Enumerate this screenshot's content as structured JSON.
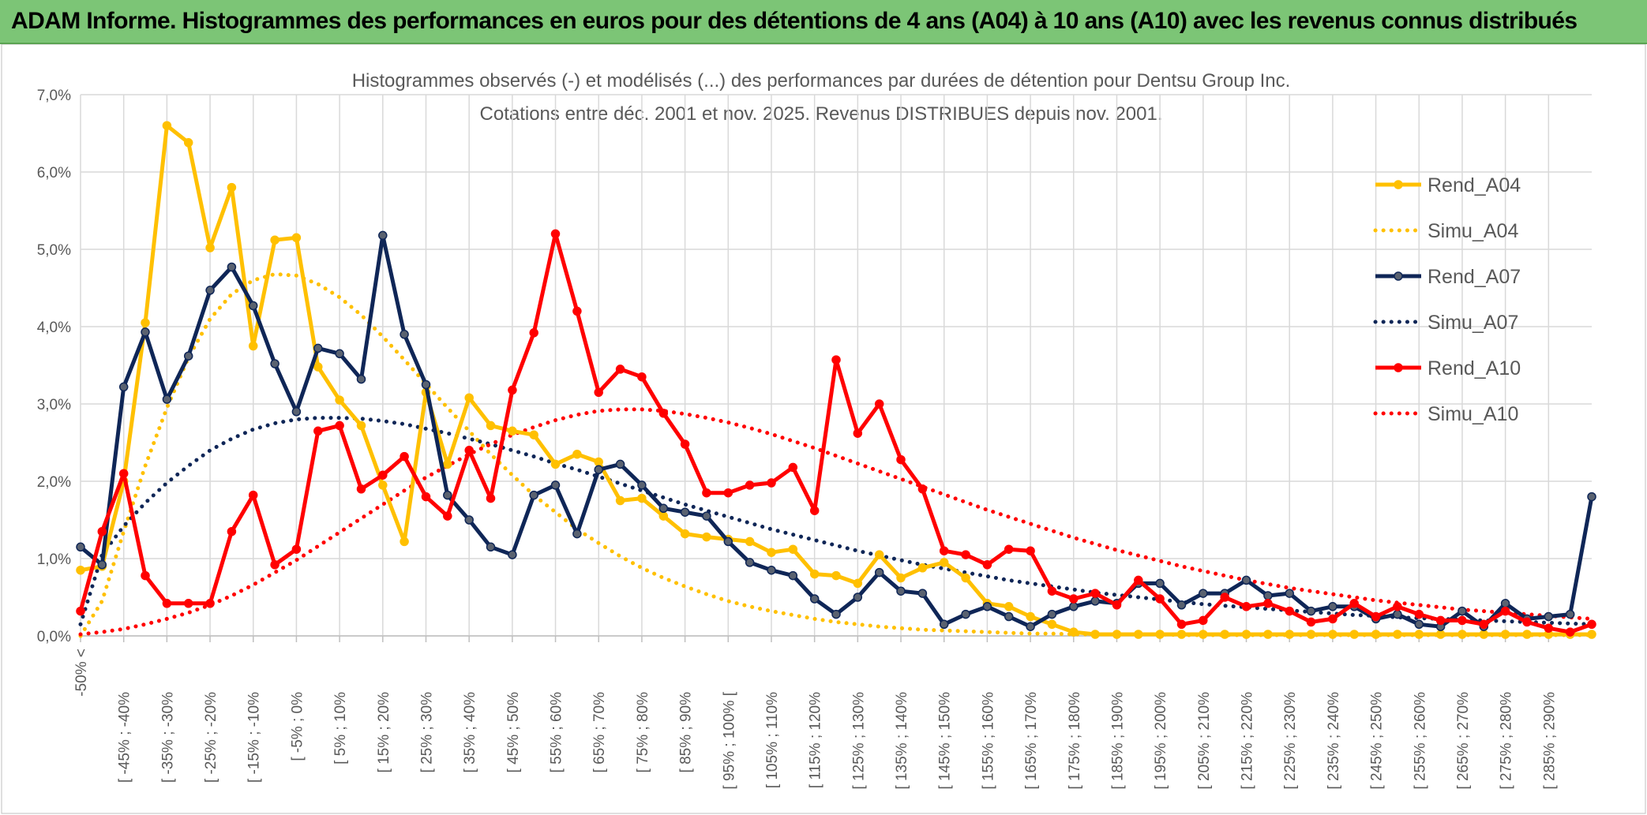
{
  "banner": {
    "title": "ADAM Informe. Histogrammes des performances en euros pour des détentions de 4 ans (A04) à 10 ans (A10) avec les revenus connus distribués"
  },
  "colors": {
    "banner": "#7cc576",
    "A04": "#ffc000",
    "A07": "#0f2657",
    "A10": "#ff0000",
    "grid": "#d9d9d9",
    "text": "#595959"
  },
  "chart_data": {
    "type": "line",
    "title": "Histogrammes observés (-) et modélisés (...) des performances par durées de détention pour Dentsu Group Inc.",
    "subtitle": "Cotations entre déc. 2001 et nov. 2025. Revenus DISTRIBUES depuis nov. 2001.",
    "xlabel": "",
    "ylabel": "",
    "ylim": [
      0,
      7
    ],
    "yticks": [
      "0,0%",
      "1,0%",
      "2,0%",
      "3,0%",
      "4,0%",
      "5,0%",
      "6,0%",
      "7,0%"
    ],
    "grid": true,
    "legend_position": "right",
    "x_labels": [
      "-50% <",
      "[ -45% ; -40%",
      "[ -35% ; -30%",
      "[ -25% ; -20%",
      "[ -15% ; -10%",
      "[ -5% ; 0%",
      "[ 5% ; 10%",
      "[ 15% ; 20%",
      "[ 25% ; 30%",
      "[ 35% ; 40%",
      "[ 45% ; 50%",
      "[ 55% ; 60%",
      "[ 65% ; 70%",
      "[ 75% ; 80%",
      "[ 85% ; 90%",
      "[ 95% ; 100% [",
      "[ 105% ; 110%",
      "[ 115% ; 120%",
      "[ 125% ; 130%",
      "[ 135% ; 140%",
      "[ 145% ; 150%",
      "[ 155% ; 160%",
      "[ 165% ; 170%",
      "[ 175% ; 180%",
      "[ 185% ; 190%",
      "[ 195% ; 200%",
      "[ 205% ; 210%",
      "[ 215% ; 220%",
      "[ 225% ; 230%",
      "[ 235% ; 240%",
      "[ 245% ; 250%",
      "[ 255% ; 260%",
      "[ 265% ; 270%",
      "[ 275% ; 280%",
      "[ 285% ; 290%"
    ],
    "series": [
      {
        "name": "Rend_A04",
        "style": "solid",
        "values": [
          0.85,
          0.9,
          2.0,
          4.05,
          6.6,
          6.38,
          5.02,
          5.8,
          3.75,
          5.12,
          5.15,
          3.48,
          3.05,
          2.72,
          1.95,
          1.22,
          3.15,
          2.22,
          3.08,
          2.72,
          2.65,
          2.6,
          2.22,
          2.35,
          2.25,
          1.75,
          1.78,
          1.55,
          1.32,
          1.28,
          1.25,
          1.22,
          1.08,
          1.12,
          0.8,
          0.78,
          0.68,
          1.05,
          0.75,
          0.88,
          0.95,
          0.75,
          0.42,
          0.38,
          0.25,
          0.15,
          0.05,
          0.02,
          0.02,
          0.02,
          0.02,
          0.02,
          0.02,
          0.02,
          0.02,
          0.02,
          0.02,
          0.02,
          0.02,
          0.02,
          0.02,
          0.02,
          0.02,
          0.02,
          0.02,
          0.02,
          0.02,
          0.02,
          0.02,
          0.02,
          0.02
        ]
      },
      {
        "name": "Simu_A04",
        "style": "dotted",
        "values": [
          0.0,
          0.45,
          1.35,
          2.2,
          2.95,
          3.6,
          4.1,
          4.42,
          4.6,
          4.68,
          4.66,
          4.55,
          4.38,
          4.15,
          3.87,
          3.57,
          3.26,
          2.95,
          2.65,
          2.35,
          2.08,
          1.82,
          1.6,
          1.38,
          1.2,
          1.03,
          0.88,
          0.75,
          0.64,
          0.54,
          0.45,
          0.38,
          0.32,
          0.27,
          0.22,
          0.18,
          0.15,
          0.12,
          0.1,
          0.08,
          0.07,
          0.06,
          0.05,
          0.04,
          0.03,
          0.03,
          0.02,
          0.02,
          0.02,
          0.02,
          0.02,
          0.01,
          0.01,
          0.01,
          0.01,
          0.01,
          0.01,
          0.01,
          0.01,
          0.01,
          0.01,
          0.01,
          0.01,
          0.01,
          0.01,
          0.01,
          0.01,
          0.01,
          0.01,
          0.01,
          0.01
        ]
      },
      {
        "name": "Rend_A07",
        "style": "solid",
        "values": [
          1.15,
          0.92,
          3.22,
          3.93,
          3.06,
          3.62,
          4.47,
          4.77,
          4.27,
          3.52,
          2.9,
          3.72,
          3.65,
          3.32,
          5.18,
          3.9,
          3.25,
          1.82,
          1.5,
          1.15,
          1.05,
          1.82,
          1.95,
          1.32,
          2.15,
          2.22,
          1.95,
          1.65,
          1.6,
          1.55,
          1.22,
          0.95,
          0.85,
          0.78,
          0.48,
          0.28,
          0.5,
          0.82,
          0.58,
          0.55,
          0.15,
          0.28,
          0.38,
          0.25,
          0.12,
          0.28,
          0.38,
          0.45,
          0.42,
          0.68,
          0.68,
          0.4,
          0.55,
          0.55,
          0.72,
          0.52,
          0.55,
          0.32,
          0.38,
          0.38,
          0.22,
          0.28,
          0.15,
          0.12,
          0.32,
          0.12,
          0.42,
          0.22,
          0.25,
          0.28,
          1.8
        ]
      },
      {
        "name": "Simu_A07",
        "style": "dotted",
        "values": [
          0.15,
          1.05,
          1.42,
          1.72,
          1.98,
          2.2,
          2.4,
          2.55,
          2.67,
          2.75,
          2.8,
          2.82,
          2.82,
          2.81,
          2.78,
          2.74,
          2.68,
          2.62,
          2.55,
          2.48,
          2.4,
          2.32,
          2.23,
          2.15,
          2.06,
          1.97,
          1.88,
          1.79,
          1.7,
          1.62,
          1.54,
          1.46,
          1.38,
          1.31,
          1.24,
          1.17,
          1.1,
          1.04,
          0.98,
          0.92,
          0.87,
          0.82,
          0.77,
          0.72,
          0.68,
          0.64,
          0.6,
          0.56,
          0.53,
          0.5,
          0.47,
          0.44,
          0.41,
          0.39,
          0.37,
          0.35,
          0.33,
          0.31,
          0.29,
          0.27,
          0.26,
          0.24,
          0.23,
          0.22,
          0.21,
          0.2,
          0.19,
          0.18,
          0.17,
          0.16,
          0.15
        ]
      },
      {
        "name": "Rend_A10",
        "style": "solid",
        "values": [
          0.32,
          1.35,
          2.1,
          0.78,
          0.42,
          0.42,
          0.42,
          1.35,
          1.82,
          0.92,
          1.12,
          2.65,
          2.72,
          1.9,
          2.08,
          2.32,
          1.8,
          1.55,
          2.4,
          1.78,
          3.18,
          3.92,
          5.2,
          4.2,
          3.15,
          3.45,
          3.35,
          2.88,
          2.48,
          1.85,
          1.85,
          1.95,
          1.98,
          2.18,
          1.62,
          3.57,
          2.62,
          3.0,
          2.28,
          1.9,
          1.1,
          1.05,
          0.92,
          1.12,
          1.1,
          0.58,
          0.48,
          0.55,
          0.4,
          0.72,
          0.48,
          0.15,
          0.2,
          0.5,
          0.38,
          0.42,
          0.32,
          0.18,
          0.22,
          0.42,
          0.25,
          0.38,
          0.28,
          0.2,
          0.2,
          0.15,
          0.32,
          0.18,
          0.1,
          0.05,
          0.15
        ]
      },
      {
        "name": "Simu_A10",
        "style": "dotted",
        "values": [
          0.02,
          0.05,
          0.09,
          0.15,
          0.22,
          0.3,
          0.4,
          0.52,
          0.66,
          0.82,
          0.98,
          1.16,
          1.34,
          1.52,
          1.7,
          1.88,
          2.05,
          2.2,
          2.35,
          2.48,
          2.6,
          2.7,
          2.79,
          2.86,
          2.91,
          2.93,
          2.93,
          2.91,
          2.87,
          2.82,
          2.76,
          2.69,
          2.61,
          2.52,
          2.43,
          2.33,
          2.23,
          2.13,
          2.03,
          1.93,
          1.83,
          1.73,
          1.63,
          1.54,
          1.45,
          1.36,
          1.27,
          1.19,
          1.11,
          1.04,
          0.97,
          0.9,
          0.84,
          0.78,
          0.72,
          0.67,
          0.62,
          0.58,
          0.54,
          0.5,
          0.46,
          0.43,
          0.4,
          0.37,
          0.34,
          0.32,
          0.3,
          0.28,
          0.26,
          0.24,
          0.22
        ]
      }
    ]
  }
}
